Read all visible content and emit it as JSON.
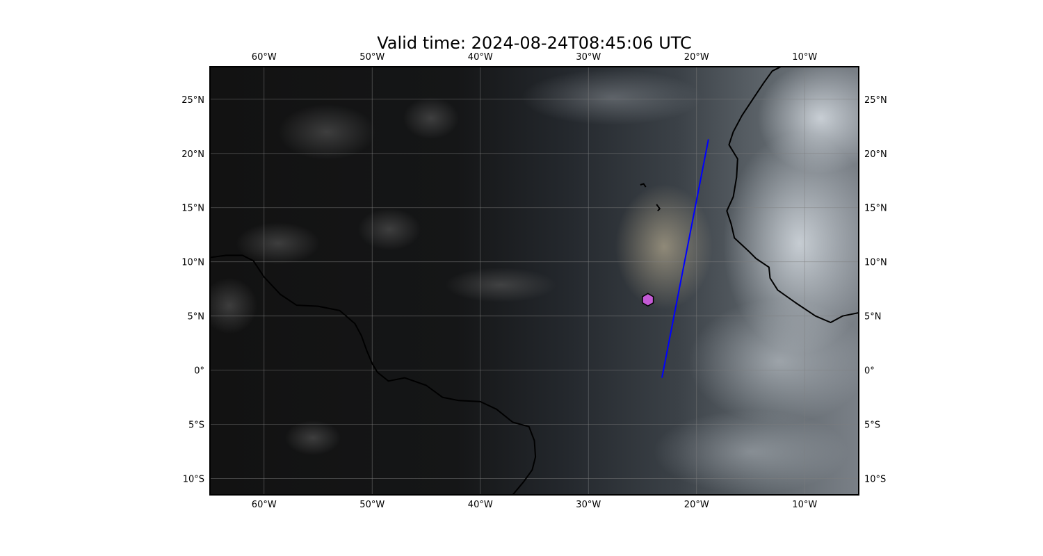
{
  "title": "Valid time: 2024-08-24T08:45:06 UTC",
  "map": {
    "projection": "PlateCarree",
    "extent": {
      "lon": [
        -65,
        -5
      ],
      "lat": [
        -11.5,
        28
      ]
    },
    "basemap": "geostationary true-color satellite composite",
    "gridlines": true
  },
  "axes": {
    "lon_ticks": [
      {
        "value": -60,
        "label": "60°W"
      },
      {
        "value": -50,
        "label": "50°W"
      },
      {
        "value": -40,
        "label": "40°W"
      },
      {
        "value": -30,
        "label": "30°W"
      },
      {
        "value": -20,
        "label": "20°W"
      },
      {
        "value": -10,
        "label": "10°W"
      }
    ],
    "lat_ticks": [
      {
        "value": 25,
        "label": "25°N"
      },
      {
        "value": 20,
        "label": "20°N"
      },
      {
        "value": 15,
        "label": "15°N"
      },
      {
        "value": 10,
        "label": "10°N"
      },
      {
        "value": 5,
        "label": "5°N"
      },
      {
        "value": 0,
        "label": "0°"
      },
      {
        "value": -5,
        "label": "5°S"
      },
      {
        "value": -10,
        "label": "10°S"
      }
    ]
  },
  "overlays": {
    "track_line": {
      "color": "#0000ff",
      "points": [
        [
          -18.9,
          21.3
        ],
        [
          -23.2,
          -0.7
        ]
      ]
    },
    "marker": {
      "shape": "hexagon",
      "color": "#c45ad6",
      "lon": -24.5,
      "lat": 6.5
    }
  },
  "colors": {
    "coastline": "#000000",
    "grid": "#7f7f7f"
  }
}
